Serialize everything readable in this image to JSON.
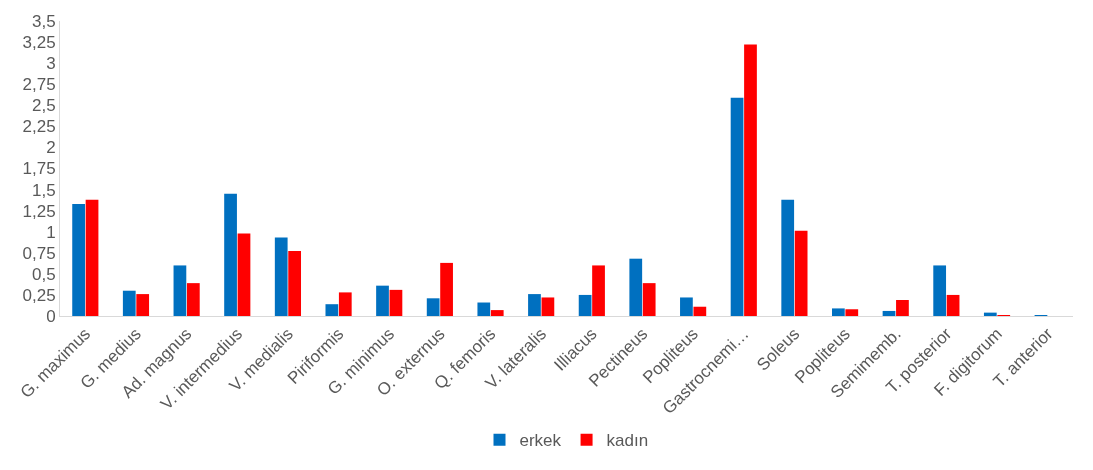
{
  "chart_data": {
    "type": "bar",
    "categories": [
      "G. maximus",
      "G. medius",
      "Ad. magnus",
      "V. intermedius",
      "V. medialis",
      "Piriformis",
      "G. minimus",
      "O. externus",
      "Q. femoris",
      "V. lateralis",
      "Illiacus",
      "Pectineus",
      "Popliteus",
      "Gastrocnemi…",
      "Soleus",
      "Popliteus",
      "Semimemb.",
      "T. posterior",
      "F. digitorum",
      "T. anterior"
    ],
    "series": [
      {
        "name": "erkek",
        "color": "#0070c0",
        "values": [
          1.33,
          0.3,
          0.6,
          1.45,
          0.93,
          0.14,
          0.36,
          0.21,
          0.16,
          0.26,
          0.25,
          0.68,
          0.22,
          2.59,
          1.38,
          0.09,
          0.06,
          0.6,
          0.04,
          0.01
        ]
      },
      {
        "name": "kadın",
        "color": "#ff0000",
        "values": [
          1.38,
          0.26,
          0.39,
          0.98,
          0.77,
          0.28,
          0.31,
          0.63,
          0.07,
          0.22,
          0.6,
          0.39,
          0.11,
          3.22,
          1.01,
          0.08,
          0.19,
          0.25,
          0.01,
          0
        ]
      }
    ],
    "ylim": [
      0,
      3.5
    ],
    "yticks": [
      {
        "value": 0,
        "label": "0"
      },
      {
        "value": 0.25,
        "label": "0,25"
      },
      {
        "value": 0.5,
        "label": "0,5"
      },
      {
        "value": 0.75,
        "label": "0,75"
      },
      {
        "value": 1,
        "label": "1"
      },
      {
        "value": 1.25,
        "label": "1,25"
      },
      {
        "value": 1.5,
        "label": "1,5"
      },
      {
        "value": 1.75,
        "label": "1,75"
      },
      {
        "value": 2,
        "label": "2"
      },
      {
        "value": 2.25,
        "label": "2,25"
      },
      {
        "value": 2.5,
        "label": "2,5"
      },
      {
        "value": 2.75,
        "label": "2,75"
      },
      {
        "value": 3,
        "label": "3"
      },
      {
        "value": 3.25,
        "label": "3,25"
      },
      {
        "value": 3.5,
        "label": "3,5"
      }
    ],
    "legend": "bottom"
  }
}
